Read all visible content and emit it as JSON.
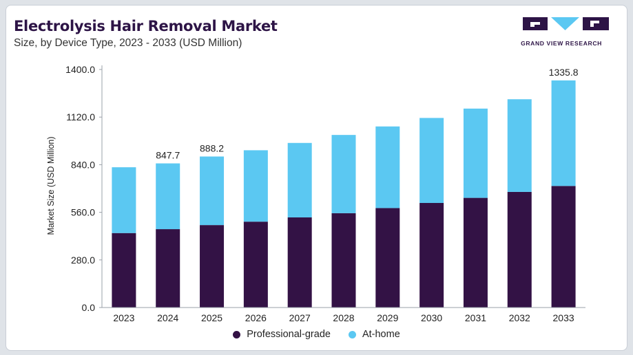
{
  "title": "Electrolysis Hair Removal Market",
  "subtitle": "Size, by Device Type, 2023 - 2033 (USD Million)",
  "logo": {
    "text": "GRAND VIEW RESEARCH"
  },
  "colors": {
    "professional": "#331245",
    "athome": "#5bc8f2"
  },
  "chart_data": {
    "type": "bar",
    "stacked": true,
    "categories": [
      "2023",
      "2024",
      "2025",
      "2026",
      "2027",
      "2028",
      "2029",
      "2030",
      "2031",
      "2032",
      "2033"
    ],
    "series": [
      {
        "name": "Professional-grade",
        "color": "#331245",
        "values": [
          438,
          461,
          485,
          505,
          530,
          555,
          585,
          615,
          645,
          680,
          715
        ]
      },
      {
        "name": "At-home",
        "color": "#5bc8f2",
        "values": [
          387,
          386.7,
          403.2,
          420,
          438,
          460,
          480,
          500,
          525,
          545,
          620.8
        ]
      }
    ],
    "totals_labels": {
      "2024": "847.7",
      "2025": "888.2",
      "2033": "1335.8"
    },
    "ylabel": "Market Size (USD Million)",
    "xlabel": "",
    "ylim": [
      0,
      1400
    ],
    "yticks": [
      "0.0",
      "280.0",
      "560.0",
      "840.0",
      "1120.0",
      "1400.0"
    ],
    "legend": "bottom"
  }
}
